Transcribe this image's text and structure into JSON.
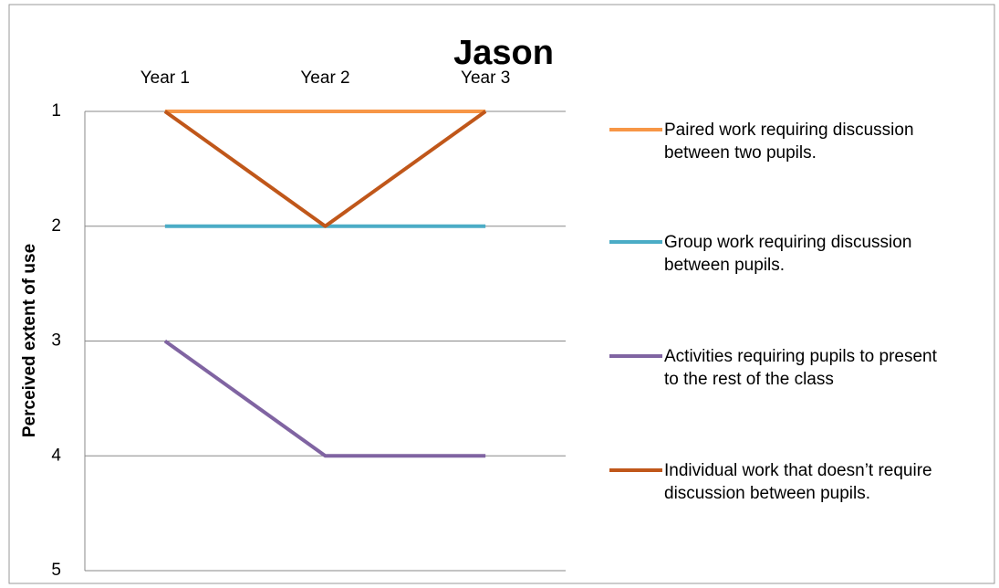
{
  "chart_data": {
    "type": "line",
    "title": "Jason",
    "y_label": "Perceived extent of use",
    "categories": [
      "Year 1",
      "Year 2",
      "Year 3"
    ],
    "series": [
      {
        "name": "Paired work requiring discussion between two pupils.",
        "color": "#f79646",
        "values": [
          1,
          1,
          1
        ]
      },
      {
        "name": "Group work requiring discussion between pupils.",
        "color": "#4bacc6",
        "values": [
          2,
          2,
          2
        ]
      },
      {
        "name": "Activities requiring pupils to present to the rest of the class",
        "color": "#8064a2",
        "values": [
          3,
          4,
          4
        ]
      },
      {
        "name": "Individual work that doesn’t require discussion between pupils.",
        "color": "#c0571a",
        "values": [
          1,
          2,
          1
        ]
      }
    ],
    "ylim": [
      1,
      5
    ],
    "yticks": [
      1,
      2,
      3,
      4,
      5
    ],
    "y_inverted": true,
    "grid": true,
    "legend": "right"
  }
}
